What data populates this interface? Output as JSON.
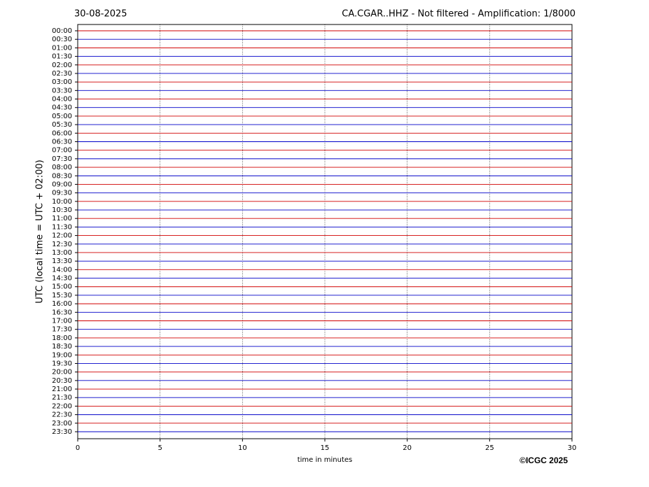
{
  "chart_data": {
    "type": "helicorder",
    "date": "30-08-2025",
    "title": "CA.CGAR..HHZ - Not filtered - Amplification: 1/8000",
    "ylabel": "UTC (local time = UTC + 02:00)",
    "xlabel": "time in minutes",
    "annotation": "©ICGC 2025",
    "categories": [
      "00:00",
      "00:30",
      "01:00",
      "01:30",
      "02:00",
      "02:30",
      "03:00",
      "03:30",
      "04:00",
      "04:30",
      "05:00",
      "05:30",
      "06:00",
      "06:30",
      "07:00",
      "07:30",
      "08:00",
      "08:30",
      "09:00",
      "09:30",
      "10:00",
      "10:30",
      "11:00",
      "11:30",
      "12:00",
      "12:30",
      "13:00",
      "13:30",
      "14:00",
      "14:30",
      "15:00",
      "15:30",
      "16:00",
      "16:30",
      "17:00",
      "17:30",
      "18:00",
      "18:30",
      "19:00",
      "19:30",
      "20:00",
      "20:30",
      "21:00",
      "21:30",
      "22:00",
      "22:30",
      "23:00",
      "23:30"
    ],
    "xlim": [
      0,
      30
    ],
    "xticks": [
      0,
      5,
      10,
      15,
      20,
      25,
      30
    ],
    "grid": true,
    "trace_colors": [
      "#d00000",
      "#0000c8"
    ]
  }
}
